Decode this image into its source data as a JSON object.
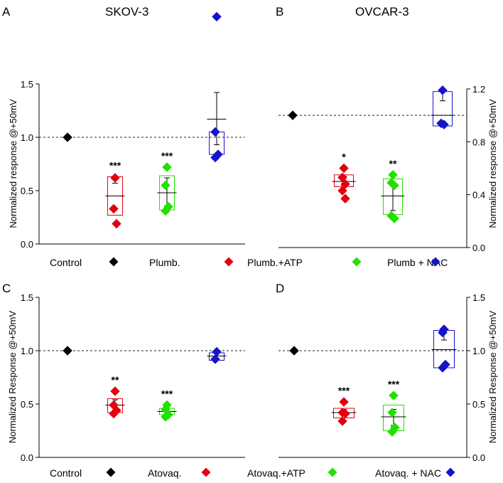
{
  "chart_data": [
    {
      "type": "box",
      "panel": "A",
      "title": "SKOV-3",
      "ylabel": "Normalized response @+50mV",
      "axis_side": "left",
      "ylim": [
        0,
        1.5
      ],
      "yticks": [
        0,
        0.5,
        1,
        1.5
      ],
      "ytick_labels": [
        "0.0",
        "0.5",
        "1.0",
        "1.5"
      ],
      "reference_line": 1.0,
      "groups": [
        {
          "name": "Control",
          "color": "#000000",
          "points": [
            1.0
          ],
          "box": null,
          "mean": null,
          "sem": null,
          "sig": ""
        },
        {
          "name": "Plumb.",
          "color": "#e3000f",
          "points": [
            0.62,
            0.33,
            0.19
          ],
          "box": [
            0.27,
            0.63
          ],
          "mean": 0.45,
          "sem": [
            0.57,
            0.61
          ],
          "sig": "***"
        },
        {
          "name": "Plumb.+ATP",
          "color": "#22e000",
          "points": [
            0.72,
            0.55,
            0.35,
            0.31
          ],
          "box": [
            0.32,
            0.64
          ],
          "mean": 0.48,
          "sem": [
            0.34,
            0.62
          ],
          "sig": "***"
        },
        {
          "name": "Plumb + NAC",
          "color": "#1414c8",
          "points": [
            2.13,
            1.05,
            0.84,
            0.81
          ],
          "box": [
            0.84,
            1.05
          ],
          "mean": 1.17,
          "sem": [
            0.93,
            1.42
          ],
          "sig": ""
        }
      ]
    },
    {
      "type": "box",
      "panel": "B",
      "title": "OVCAR-3",
      "ylabel": "Normalized response @+50mV",
      "axis_side": "right",
      "ylim": [
        0,
        1.2
      ],
      "yticks": [
        0,
        0.4,
        0.8,
        1.2
      ],
      "ytick_labels": [
        "0.0",
        "0.4",
        "0.8",
        "1.2"
      ],
      "reference_line": 1.0,
      "groups": [
        {
          "name": "Control",
          "color": "#000000",
          "points": [
            1.0
          ],
          "box": null,
          "mean": null,
          "sem": null,
          "sig": ""
        },
        {
          "name": "Plumb.",
          "color": "#e3000f",
          "points": [
            0.6,
            0.53,
            0.48,
            0.43,
            0.37
          ],
          "box": [
            0.46,
            0.55
          ],
          "mean": 0.5,
          "sem": [
            0.47,
            0.54
          ],
          "sig": "*"
        },
        {
          "name": "Plumb.+ATP",
          "color": "#22e000",
          "points": [
            0.55,
            0.49,
            0.47,
            0.24,
            0.22
          ],
          "box": [
            0.25,
            0.52
          ],
          "mean": 0.39,
          "sem": [
            0.28,
            0.48
          ],
          "sig": "**"
        },
        {
          "name": "Plumb + NAC",
          "color": "#1414c8",
          "points": [
            1.19,
            0.94,
            0.93
          ],
          "box": [
            0.92,
            1.18
          ],
          "mean": 1.0,
          "sem": [
            1.11,
            1.2
          ],
          "sig": ""
        }
      ]
    },
    {
      "type": "box",
      "panel": "C",
      "title": "",
      "ylabel": "Normalized Response @+50mV",
      "axis_side": "left",
      "ylim": [
        0,
        1.5
      ],
      "yticks": [
        0,
        0.5,
        1,
        1.5
      ],
      "ytick_labels": [
        "0.0",
        "0.5",
        "1.0",
        "1.5"
      ],
      "reference_line": 1.0,
      "groups": [
        {
          "name": "Control",
          "color": "#000000",
          "points": [
            1.0
          ],
          "box": null,
          "mean": null,
          "sem": null,
          "sig": ""
        },
        {
          "name": "Atovaq.",
          "color": "#e3000f",
          "points": [
            0.62,
            0.49,
            0.44,
            0.41
          ],
          "box": [
            0.42,
            0.55
          ],
          "mean": 0.49,
          "sem": [
            0.43,
            0.54
          ],
          "sig": "**"
        },
        {
          "name": "Atovaq.+ATP",
          "color": "#22e000",
          "points": [
            0.49,
            0.45,
            0.4,
            0.38
          ],
          "box": [
            0.4,
            0.46
          ],
          "mean": 0.43,
          "sem": [
            0.41,
            0.45
          ],
          "sig": "***"
        },
        {
          "name": "Atovaq. + NAC",
          "color": "#1414c8",
          "points": [
            0.99,
            0.92
          ],
          "box": [
            0.91,
            0.98
          ],
          "mean": 0.95,
          "sem": null,
          "sig": ""
        }
      ]
    },
    {
      "type": "box",
      "panel": "D",
      "title": "",
      "ylabel": "Normalized Response @+50mV",
      "axis_side": "right",
      "ylim": [
        0,
        1.5
      ],
      "yticks": [
        0,
        0.5,
        1,
        1.5
      ],
      "ytick_labels": [
        "0.0",
        "0.5",
        "1.0",
        "1.5"
      ],
      "reference_line": 1.0,
      "groups": [
        {
          "name": "Control",
          "color": "#000000",
          "points": [
            1.0
          ],
          "box": null,
          "mean": null,
          "sem": null,
          "sig": ""
        },
        {
          "name": "Atovaq.",
          "color": "#e3000f",
          "points": [
            0.52,
            0.42,
            0.41,
            0.34
          ],
          "box": [
            0.37,
            0.46
          ],
          "mean": 0.42,
          "sem": [
            0.39,
            0.45
          ],
          "sig": "***"
        },
        {
          "name": "Atovaq.+ATP",
          "color": "#22e000",
          "points": [
            0.58,
            0.42,
            0.28,
            0.24
          ],
          "box": [
            0.25,
            0.49
          ],
          "mean": 0.38,
          "sem": [
            0.3,
            0.45
          ],
          "sig": "***"
        },
        {
          "name": "Atovaq. + NAC",
          "color": "#1414c8",
          "points": [
            1.2,
            1.17,
            0.87,
            0.84
          ],
          "box": [
            0.84,
            1.19
          ],
          "mean": 1.01,
          "sem": [
            1.1,
            1.19
          ],
          "sig": ""
        }
      ]
    }
  ]
}
